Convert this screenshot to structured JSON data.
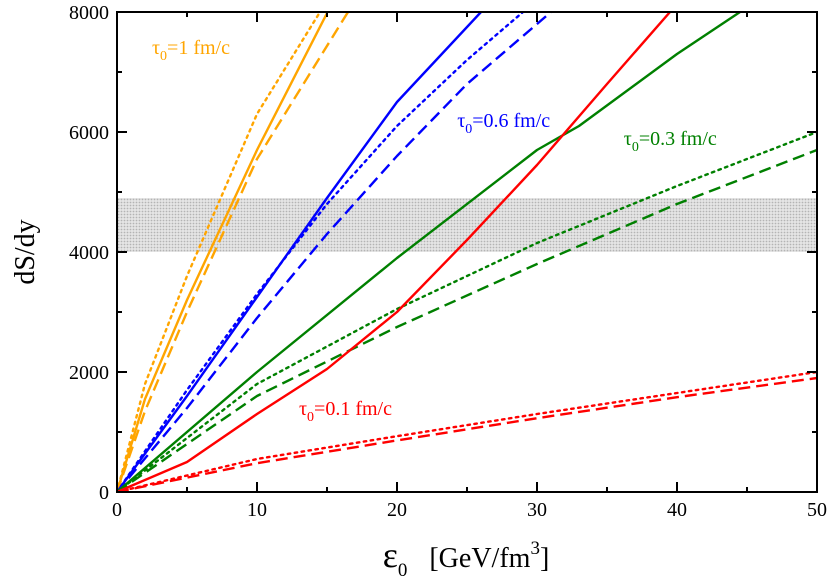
{
  "chart_data": {
    "type": "line",
    "xlabel": {
      "symbol": "ε",
      "sub": "0",
      "units": "[GeV/fm",
      "sup": "3",
      "close": "]"
    },
    "ylabel": "dS/dy",
    "xlim": [
      0,
      50
    ],
    "ylim": [
      0,
      8000
    ],
    "xticks": [
      0,
      10,
      20,
      30,
      40,
      50
    ],
    "yticks": [
      0,
      2000,
      4000,
      6000,
      8000
    ],
    "band": {
      "y_min": 4000,
      "y_max": 4900,
      "color": "#c8c8c8"
    },
    "colors": {
      "tau1": "#ffa500",
      "tau06": "#0000ff",
      "tau03": "#008000",
      "tau01": "#ff0000"
    },
    "annotations": [
      {
        "group": "tau1",
        "color": "#ffa500",
        "tau": "τ",
        "sub": "0",
        "rest": "=1 fm/c"
      },
      {
        "group": "tau06",
        "color": "#0000ff",
        "tau": "τ",
        "sub": "0",
        "rest": "=0.6 fm/c"
      },
      {
        "group": "tau03",
        "color": "#008000",
        "tau": "τ",
        "sub": "0",
        "rest": "=0.3 fm/c"
      },
      {
        "group": "tau01",
        "color": "#ff0000",
        "tau": "τ",
        "sub": "0",
        "rest": "=0.1 fm/c"
      }
    ],
    "series": [
      {
        "group": "tau1",
        "style": "solid",
        "color": "#ffa500",
        "x": [
          0,
          2,
          5,
          10,
          15
        ],
        "y": [
          0,
          1550,
          3200,
          5700,
          7980
        ]
      },
      {
        "group": "tau1",
        "style": "dotted",
        "color": "#ffa500",
        "x": [
          0,
          2,
          5,
          10,
          14.5
        ],
        "y": [
          0,
          1800,
          3600,
          6300,
          8000
        ]
      },
      {
        "group": "tau1",
        "style": "dashed",
        "color": "#ffa500",
        "x": [
          0,
          2,
          5,
          10,
          16.5
        ],
        "y": [
          0,
          1350,
          3000,
          5550,
          8000
        ]
      },
      {
        "group": "tau06",
        "style": "solid",
        "color": "#0000ff",
        "x": [
          0,
          5,
          10,
          15,
          20,
          26
        ],
        "y": [
          0,
          1600,
          3250,
          4900,
          6500,
          8000
        ]
      },
      {
        "group": "tau06",
        "style": "dotted",
        "color": "#0000ff",
        "x": [
          0,
          5,
          10,
          15,
          20,
          25,
          29
        ],
        "y": [
          0,
          1700,
          3300,
          4800,
          6100,
          7200,
          8000
        ]
      },
      {
        "group": "tau06",
        "style": "dashed",
        "color": "#0000ff",
        "x": [
          0,
          5,
          10,
          15,
          20,
          25,
          31
        ],
        "y": [
          0,
          1400,
          2900,
          4300,
          5600,
          6800,
          8000
        ]
      },
      {
        "group": "tau03",
        "style": "solid",
        "color": "#008000",
        "x": [
          0,
          10,
          20,
          30,
          33,
          40,
          44.5
        ],
        "y": [
          0,
          2000,
          3900,
          5700,
          6100,
          7300,
          8000
        ]
      },
      {
        "group": "tau03",
        "style": "dotted",
        "color": "#008000",
        "x": [
          0,
          10,
          20,
          30,
          40,
          50
        ],
        "y": [
          0,
          1800,
          3050,
          4150,
          5100,
          6000
        ]
      },
      {
        "group": "tau03",
        "style": "dashed",
        "color": "#008000",
        "x": [
          0,
          10,
          20,
          30,
          40,
          50
        ],
        "y": [
          0,
          1600,
          2750,
          3800,
          4800,
          5700
        ]
      },
      {
        "group": "tau01",
        "style": "solid",
        "color": "#ff0000",
        "x": [
          0,
          5,
          10,
          15,
          20,
          25,
          30,
          35,
          39.5
        ],
        "y": [
          0,
          500,
          1300,
          2050,
          3000,
          4200,
          5450,
          6800,
          8000
        ]
      },
      {
        "group": "tau01",
        "style": "dotted",
        "color": "#ff0000",
        "x": [
          0,
          10,
          20,
          30,
          40,
          50
        ],
        "y": [
          0,
          550,
          930,
          1300,
          1650,
          2000
        ]
      },
      {
        "group": "tau01",
        "style": "dashed",
        "color": "#ff0000",
        "x": [
          0,
          10,
          20,
          30,
          40,
          50
        ],
        "y": [
          0,
          480,
          860,
          1230,
          1580,
          1900
        ]
      }
    ]
  }
}
